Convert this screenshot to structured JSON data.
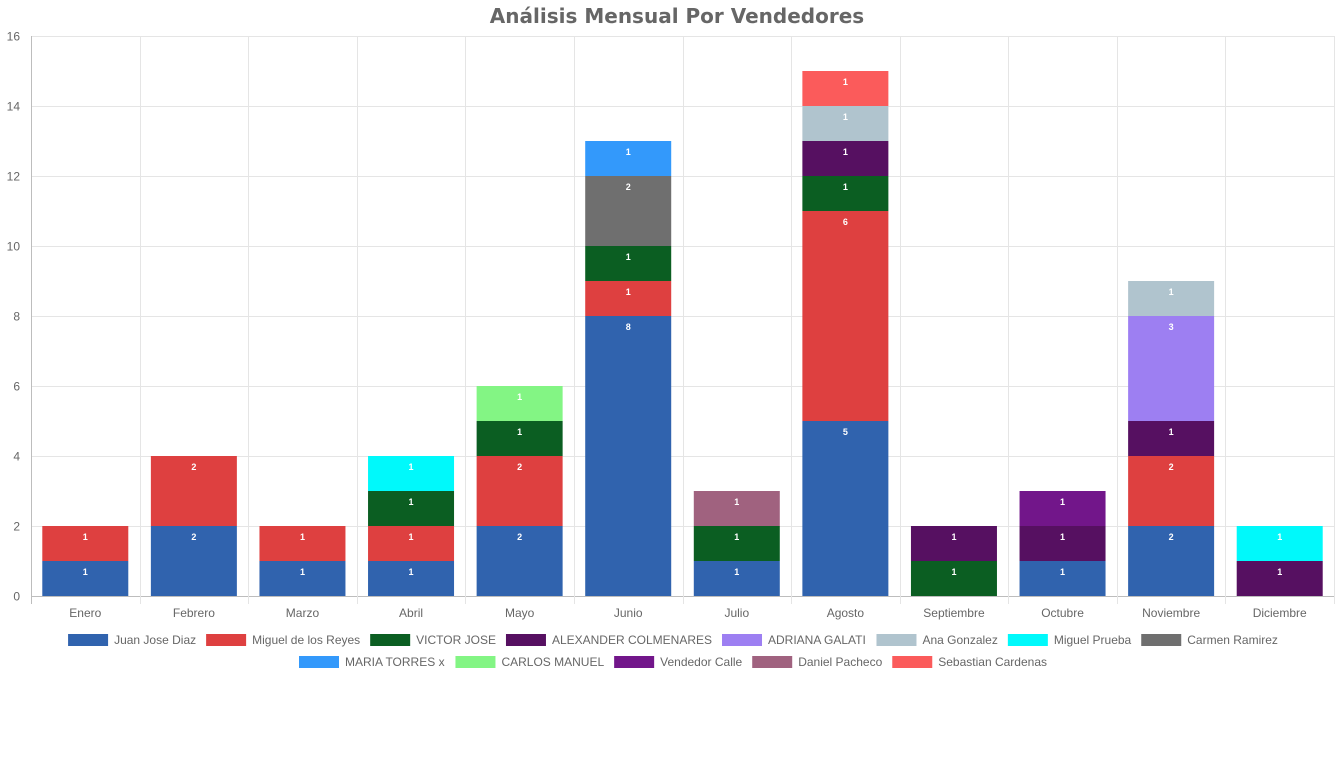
{
  "chart_data": {
    "type": "bar",
    "stacked": true,
    "title": "Análisis Mensual Por Vendedores",
    "categories": [
      "Enero",
      "Febrero",
      "Marzo",
      "Abril",
      "Mayo",
      "Junio",
      "Julio",
      "Agosto",
      "Septiembre",
      "Octubre",
      "Noviembre",
      "Diciembre"
    ],
    "ylim": [
      0,
      16
    ],
    "yticks": [
      0,
      2,
      4,
      6,
      8,
      10,
      12,
      14,
      16
    ],
    "grid": true,
    "legend_position": "bottom",
    "series": [
      {
        "name": "Juan Jose Diaz",
        "color": "#3063ae",
        "values": [
          1,
          2,
          1,
          1,
          2,
          8,
          1,
          5,
          0,
          1,
          2,
          0
        ]
      },
      {
        "name": "Miguel de los Reyes",
        "color": "#de4040",
        "values": [
          1,
          2,
          1,
          1,
          2,
          1,
          0,
          6,
          0,
          0,
          2,
          0
        ]
      },
      {
        "name": "VICTOR JOSE",
        "color": "#0b5e22",
        "values": [
          0,
          0,
          0,
          1,
          1,
          1,
          1,
          1,
          1,
          0,
          0,
          0
        ]
      },
      {
        "name": "ALEXANDER COLMENARES",
        "color": "#561061",
        "values": [
          0,
          0,
          0,
          0,
          0,
          0,
          0,
          1,
          1,
          1,
          1,
          1
        ]
      },
      {
        "name": "ADRIANA GALATI",
        "color": "#9d7ff2",
        "values": [
          0,
          0,
          0,
          0,
          0,
          0,
          0,
          0,
          0,
          0,
          3,
          0
        ]
      },
      {
        "name": "Ana Gonzalez",
        "color": "#b0c4ce",
        "values": [
          0,
          0,
          0,
          0,
          0,
          0,
          0,
          1,
          0,
          0,
          1,
          0
        ]
      },
      {
        "name": "Miguel Prueba",
        "color": "#00f9fb",
        "values": [
          0,
          0,
          0,
          1,
          0,
          0,
          0,
          0,
          0,
          0,
          0,
          1
        ]
      },
      {
        "name": "Carmen Ramirez",
        "color": "#6f6f6f",
        "values": [
          0,
          0,
          0,
          0,
          0,
          2,
          0,
          0,
          0,
          0,
          0,
          0
        ]
      },
      {
        "name": "MARIA TORRES x",
        "color": "#3399fb",
        "values": [
          0,
          0,
          0,
          0,
          0,
          1,
          0,
          0,
          0,
          0,
          0,
          0
        ]
      },
      {
        "name": "CARLOS MANUEL",
        "color": "#83f584",
        "values": [
          0,
          0,
          0,
          0,
          1,
          0,
          0,
          0,
          0,
          0,
          0,
          0
        ]
      },
      {
        "name": "Vendedor Calle",
        "color": "#72168a",
        "values": [
          0,
          0,
          0,
          0,
          0,
          0,
          0,
          0,
          0,
          1,
          0,
          0
        ]
      },
      {
        "name": "Daniel Pacheco",
        "color": "#a0627f",
        "values": [
          0,
          0,
          0,
          0,
          0,
          0,
          1,
          0,
          0,
          0,
          0,
          0
        ]
      },
      {
        "name": "Sebastian Cardenas",
        "color": "#fb5b5b",
        "values": [
          0,
          0,
          0,
          0,
          0,
          0,
          0,
          1,
          0,
          0,
          0,
          0
        ]
      }
    ]
  }
}
